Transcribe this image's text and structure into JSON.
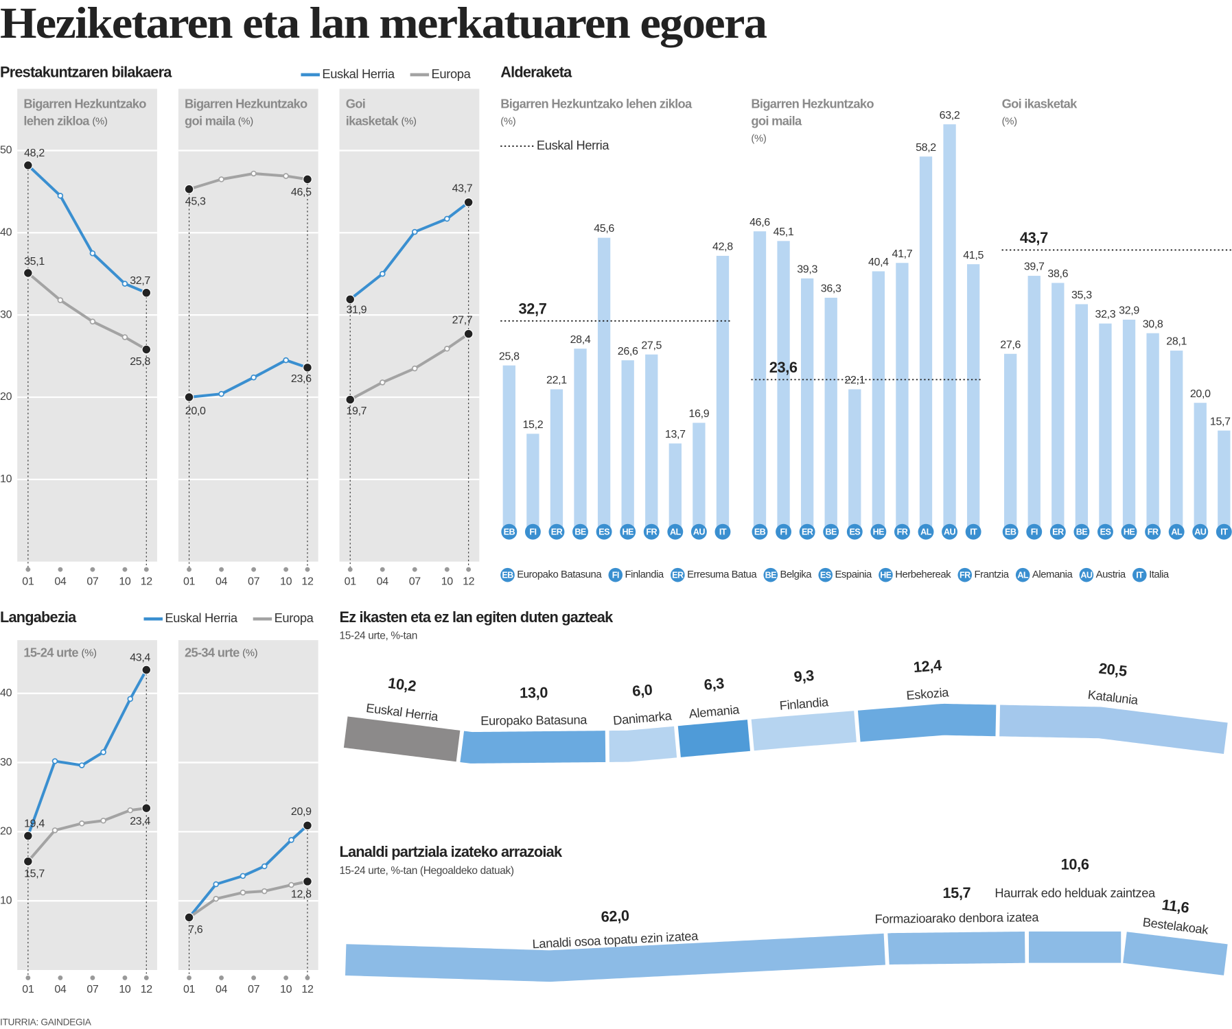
{
  "title": "Heziketaren eta lan merkatuaren egoera",
  "source": "ITURRIA: GAINDEGIA",
  "chart_data": [
    {
      "type": "line",
      "title": "Prestakuntzaren bilakaera",
      "series": [
        {
          "name": "Euskal Herria",
          "color": "#3a8fd0"
        },
        {
          "name": "Europa",
          "color": "#a3a3a3"
        }
      ],
      "x": [
        1,
        4,
        7,
        10,
        12
      ],
      "xlim": [
        0,
        13
      ],
      "xticks": [
        {
          "value": 1,
          "label": "01"
        },
        {
          "value": 4,
          "label": "04"
        },
        {
          "value": 7,
          "label": "07"
        },
        {
          "value": 10,
          "label": "10"
        },
        {
          "value": 12,
          "label": "12"
        }
      ],
      "ylim": [
        0,
        57.5
      ],
      "yticks": [
        10,
        20,
        30,
        40,
        50
      ],
      "grid": true,
      "panels": [
        {
          "title_lines": [
            "Bigarren Hezkuntzako",
            "lehen zikloa"
          ],
          "unit": "(%)",
          "values": [
            [
              48.2,
              44.5,
              37.5,
              33.8,
              32.7
            ],
            [
              35.1,
              31.8,
              29.2,
              27.3,
              25.8
            ]
          ],
          "value_labels": [
            [
              "48,2",
              null,
              null,
              null,
              "32,7"
            ],
            [
              "35,1",
              null,
              null,
              null,
              "25,8"
            ]
          ]
        },
        {
          "title_lines": [
            "Bigarren Hezkuntzako",
            "goi maila"
          ],
          "unit": "(%)",
          "values": [
            [
              20.0,
              20.4,
              22.4,
              24.5,
              23.6
            ],
            [
              45.3,
              46.5,
              47.2,
              46.9,
              46.5
            ]
          ],
          "value_labels": [
            [
              "20,0",
              null,
              null,
              null,
              "23,6"
            ],
            [
              "45,3",
              null,
              null,
              null,
              "46,5"
            ]
          ]
        },
        {
          "title_lines": [
            "Goi",
            "ikasketak"
          ],
          "unit": "(%)",
          "values": [
            [
              31.9,
              35.0,
              40.1,
              41.7,
              43.7
            ],
            [
              19.7,
              21.8,
              23.5,
              25.9,
              27.7
            ]
          ],
          "value_labels": [
            [
              "31,9",
              null,
              null,
              null,
              "43,7"
            ],
            [
              "19,7",
              null,
              null,
              null,
              "27,7"
            ]
          ]
        }
      ]
    },
    {
      "type": "bar",
      "title": "Alderaketa",
      "reference_name": "Euskal Herria",
      "color": "#b8d6f2",
      "code_color": "#3a8fd0",
      "categories": [
        "EB",
        "FI",
        "ER",
        "BE",
        "ES",
        "HE",
        "FR",
        "AL",
        "AU",
        "IT"
      ],
      "category_names": [
        "Europako Batasuna",
        "Finlandia",
        "Erresuma Batua",
        "Belgika",
        "Espainia",
        "Herbehereak",
        "Frantzia",
        "Alemania",
        "Austria",
        "Italia"
      ],
      "groups": [
        {
          "title_lines": [
            "Bigarren Hezkuntzako lehen zikloa"
          ],
          "unit": "(%)",
          "values": [
            25.8,
            15.2,
            22.1,
            28.4,
            45.6,
            26.6,
            27.5,
            13.7,
            16.9,
            42.8
          ],
          "value_labels": [
            "25,8",
            "15,2",
            "22,1",
            "28,4",
            "45,6",
            "26,6",
            "27,5",
            "13,7",
            "16,9",
            "42,8"
          ],
          "reference": 32.7,
          "reference_label": "32,7"
        },
        {
          "title_lines": [
            "Bigarren Hezkuntzako",
            "goi maila"
          ],
          "unit": "(%)",
          "values": [
            46.6,
            45.1,
            39.3,
            36.3,
            22.1,
            40.4,
            41.7,
            58.2,
            63.2,
            41.5
          ],
          "value_labels": [
            "46,6",
            "45,1",
            "39,3",
            "36,3",
            "22,1",
            "40,4",
            "41,7",
            "58,2",
            "63,2",
            "41,5"
          ],
          "reference": 23.6,
          "reference_label": "23,6"
        },
        {
          "title_lines": [
            "Goi ikasketak"
          ],
          "unit": "(%)",
          "values": [
            27.6,
            39.7,
            38.6,
            35.3,
            32.3,
            32.9,
            30.8,
            28.1,
            20.0,
            15.7
          ],
          "value_labels": [
            "27,6",
            "39,7",
            "38,6",
            "35,3",
            "32,3",
            "32,9",
            "30,8",
            "28,1",
            "20,0",
            "15,7"
          ],
          "reference": 43.7,
          "reference_label": "43,7"
        }
      ]
    },
    {
      "type": "line",
      "title": "Langabezia",
      "series": [
        {
          "name": "Euskal Herria",
          "color": "#3a8fd0"
        },
        {
          "name": "Europa",
          "color": "#a3a3a3"
        }
      ],
      "x": [
        1,
        3.5,
        6,
        8,
        10.5,
        12
      ],
      "xlim": [
        0,
        13
      ],
      "xticks": [
        {
          "value": 1,
          "label": "01"
        },
        {
          "value": 4,
          "label": "04"
        },
        {
          "value": 7,
          "label": "07"
        },
        {
          "value": 10,
          "label": "10"
        },
        {
          "value": 12,
          "label": "12"
        }
      ],
      "ylim": [
        0,
        47.7
      ],
      "yticks": [
        10,
        20,
        30,
        40
      ],
      "grid": true,
      "panels": [
        {
          "title_lines": [
            "15-24 urte"
          ],
          "unit": "(%)",
          "values": [
            [
              19.4,
              30.2,
              29.6,
              31.5,
              39.2,
              43.4
            ],
            [
              15.7,
              20.2,
              21.2,
              21.6,
              23.1,
              23.4
            ]
          ],
          "value_labels": [
            [
              "19,4",
              null,
              null,
              null,
              null,
              "43,4"
            ],
            [
              "15,7",
              null,
              null,
              null,
              null,
              "23,4"
            ]
          ]
        },
        {
          "title_lines": [
            "25-34 urte"
          ],
          "unit": "(%)",
          "values": [
            [
              7.6,
              12.4,
              13.6,
              15.0,
              18.8,
              20.9
            ],
            [
              7.6,
              10.3,
              11.2,
              11.4,
              12.3,
              12.8
            ]
          ],
          "value_labels": [
            [
              "7,6",
              null,
              null,
              null,
              null,
              "20,9"
            ],
            [
              null,
              null,
              null,
              null,
              null,
              "12,8"
            ]
          ]
        }
      ]
    },
    {
      "type": "segments",
      "title": "Ez ikasten eta ez lan egiten duten gazteak",
      "subtitle": "15-24 urte, %-tan",
      "categories": [
        "Euskal Herria",
        "Europako Batasuna",
        "Danimarka",
        "Alemania",
        "Finlandia",
        "Eskozia",
        "Katalunia"
      ],
      "values": [
        10.2,
        13.0,
        6.0,
        6.3,
        9.3,
        12.4,
        20.5
      ],
      "value_labels": [
        "10,2",
        "13,0",
        "6,0",
        "6,3",
        "9,3",
        "12,4",
        "20,5"
      ],
      "colors": [
        "#8c8a8a",
        "#6aaae0",
        "#b6d4f0",
        "#4f9bd8",
        "#b6d4f0",
        "#6aaae0",
        "#a4c8ec"
      ]
    },
    {
      "type": "segments",
      "title": "Lanaldi partziala izateko arrazoiak",
      "subtitle": "15-24 urte, %-tan (Hegoaldeko datuak)",
      "categories": [
        "Lanaldi osoa topatu ezin izatea",
        "Formazioarako denbora izatea",
        "Haurrak edo helduak zaintzea",
        "Bestelakoak"
      ],
      "values": [
        62.0,
        15.7,
        10.6,
        11.6
      ],
      "value_labels": [
        "62,0",
        "15,7",
        "10,6",
        "11,6"
      ],
      "color": "#8cbbe6"
    }
  ]
}
